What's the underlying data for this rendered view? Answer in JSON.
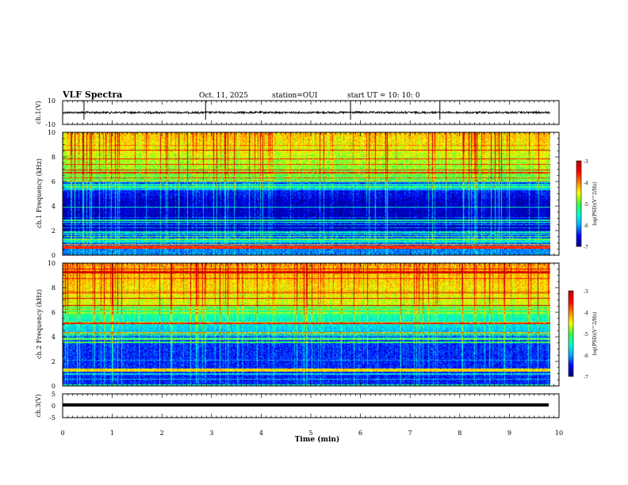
{
  "header": {
    "title": "VLF Spectra",
    "date": "Oct. 11, 2025",
    "station": "station=OUI",
    "start": "start  UT  =   10: 10: 0"
  },
  "colors": {
    "spectrum_cmap": [
      "#00007a",
      "#0000ff",
      "#00b0ff",
      "#00ffd0",
      "#40ff40",
      "#ffff00",
      "#ff8000",
      "#ff0000",
      "#c00000"
    ],
    "trace": "#000000",
    "frame": "#000000"
  },
  "chart_data": [
    {
      "type": "line",
      "name": "ch1-waveform",
      "ylabel": "ch.1(V)",
      "ylim": [
        -10,
        10
      ],
      "yticks": [
        10,
        -10
      ],
      "baseline": 0,
      "xlim": [
        0,
        10
      ],
      "data_end_min": 9.83
    },
    {
      "type": "heatmap",
      "name": "ch1-spectrogram",
      "ylabel": "ch.1 Frequency (kHz)",
      "ylim": [
        0,
        10
      ],
      "yticks": [
        0,
        2,
        4,
        6,
        8,
        10
      ],
      "xlim": [
        0,
        10
      ],
      "data_end_min": 9.83,
      "colorbar": {
        "label": "log(PSD)(V^2/Hz)",
        "range": [
          -7,
          -3
        ],
        "ticks": [
          "-3",
          "-4",
          "-5",
          "-6",
          "-7"
        ]
      }
    },
    {
      "type": "heatmap",
      "name": "ch2-spectrogram",
      "ylabel": "ch.2 Frequency (kHz)",
      "ylim": [
        0,
        10
      ],
      "yticks": [
        0,
        2,
        4,
        6,
        8,
        10
      ],
      "xlim": [
        0,
        10
      ],
      "data_end_min": 9.83,
      "colorbar": {
        "label": "log(PSD)(V^2/Hz)",
        "range": [
          -7,
          -3
        ],
        "ticks": [
          "-3",
          "-4",
          "-5",
          "-6",
          "-7"
        ]
      }
    },
    {
      "type": "line",
      "name": "ch3-waveform",
      "ylabel": "ch.3(V)",
      "ylim": [
        -5,
        5
      ],
      "yticks": [
        5,
        0,
        -5
      ],
      "baseline": -2,
      "xlim": [
        0,
        10
      ],
      "data_end_min": 9.83
    }
  ],
  "xaxis": {
    "label": "Time  (min)",
    "ticks": [
      "0",
      "1",
      "2",
      "3",
      "4",
      "5",
      "6",
      "7",
      "8",
      "9",
      "10"
    ]
  }
}
